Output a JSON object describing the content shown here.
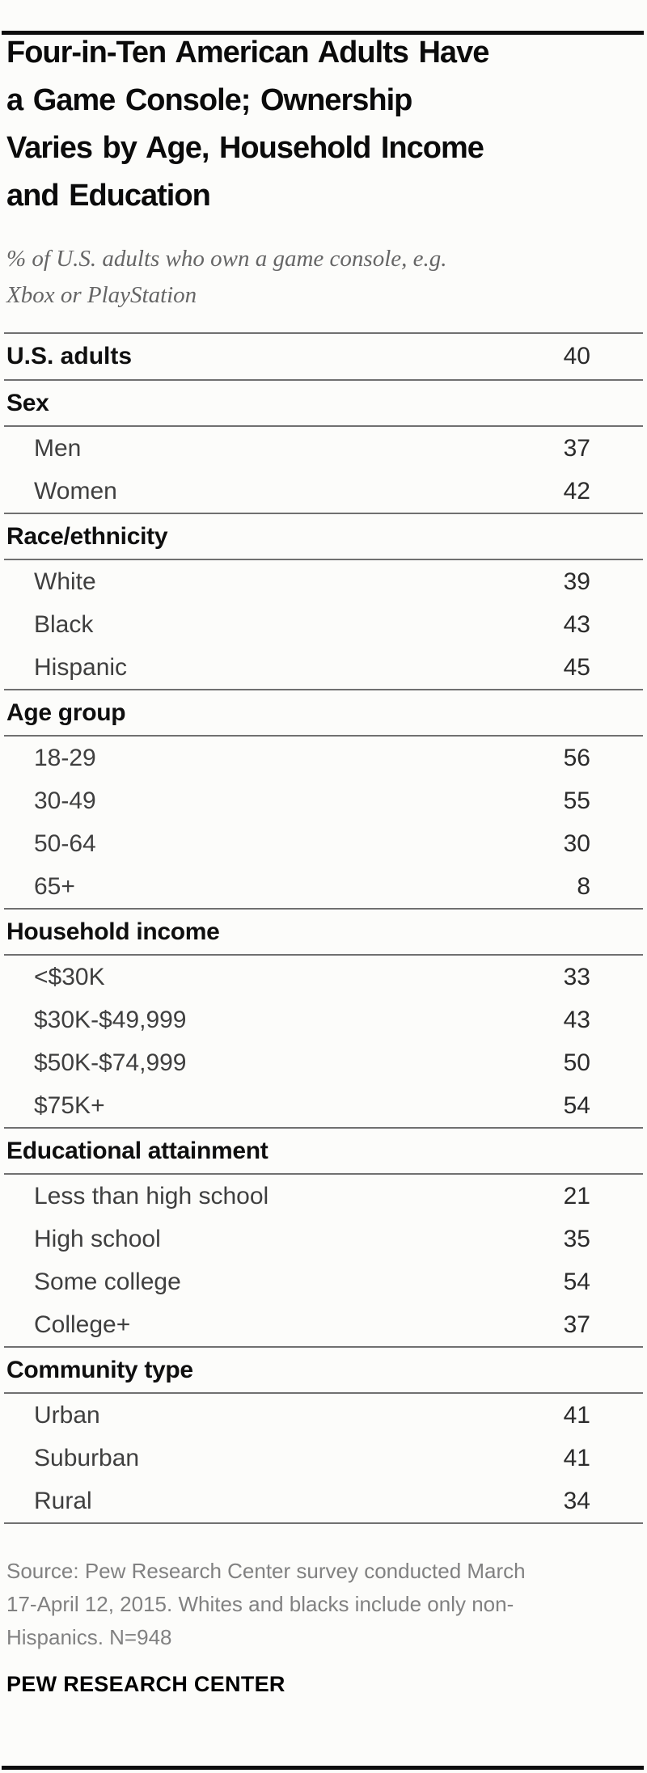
{
  "header": {
    "title_lines": [
      "Four-in-Ten American Adults Have",
      "a Game Console; Ownership",
      "Varies by Age, Household Income",
      "and Education"
    ],
    "subtitle_lines": [
      "% of U.S. adults who own a game console, e.g.",
      "Xbox or PlayStation"
    ]
  },
  "footer": {
    "source_lines": [
      "Source: Pew Research Center survey conducted March",
      "17-April 12, 2015. Whites and blacks include only non-",
      "Hispanics. N=948"
    ],
    "branding": "PEW RESEARCH CENTER"
  },
  "colors": {
    "rule_gray": "#707070",
    "frame_black": "#0d0d0d",
    "subtitle_gray": "#666666",
    "source_gray": "#818181"
  },
  "chart_data": {
    "type": "table",
    "title": "Four-in-Ten American Adults Have a Game Console; Ownership Varies by Age, Household Income and Education",
    "subtitle": "% of U.S. adults who own a game console, e.g. Xbox or PlayStation",
    "unit": "% of U.S. adults",
    "total": {
      "label": "U.S. adults",
      "value": 40
    },
    "groups": [
      {
        "header": "Sex",
        "rows": [
          {
            "label": "Men",
            "value": 37
          },
          {
            "label": "Women",
            "value": 42
          }
        ]
      },
      {
        "header": "Race/ethnicity",
        "rows": [
          {
            "label": "White",
            "value": 39
          },
          {
            "label": "Black",
            "value": 43
          },
          {
            "label": "Hispanic",
            "value": 45
          }
        ]
      },
      {
        "header": "Age group",
        "rows": [
          {
            "label": "18-29",
            "value": 56
          },
          {
            "label": "30-49",
            "value": 55
          },
          {
            "label": "50-64",
            "value": 30
          },
          {
            "label": "65+",
            "value": 8
          }
        ]
      },
      {
        "header": "Household income",
        "rows": [
          {
            "label": "<$30K",
            "value": 33
          },
          {
            "label": "$30K-$49,999",
            "value": 43
          },
          {
            "label": "$50K-$74,999",
            "value": 50
          },
          {
            "label": "$75K+",
            "value": 54
          }
        ]
      },
      {
        "header": "Educational attainment",
        "rows": [
          {
            "label": "Less than high school",
            "value": 21
          },
          {
            "label": "High school",
            "value": 35
          },
          {
            "label": "Some college",
            "value": 54
          },
          {
            "label": "College+",
            "value": 37
          }
        ]
      },
      {
        "header": "Community type",
        "rows": [
          {
            "label": "Urban",
            "value": 41
          },
          {
            "label": "Suburban",
            "value": 41
          },
          {
            "label": "Rural",
            "value": 34
          }
        ]
      }
    ]
  }
}
